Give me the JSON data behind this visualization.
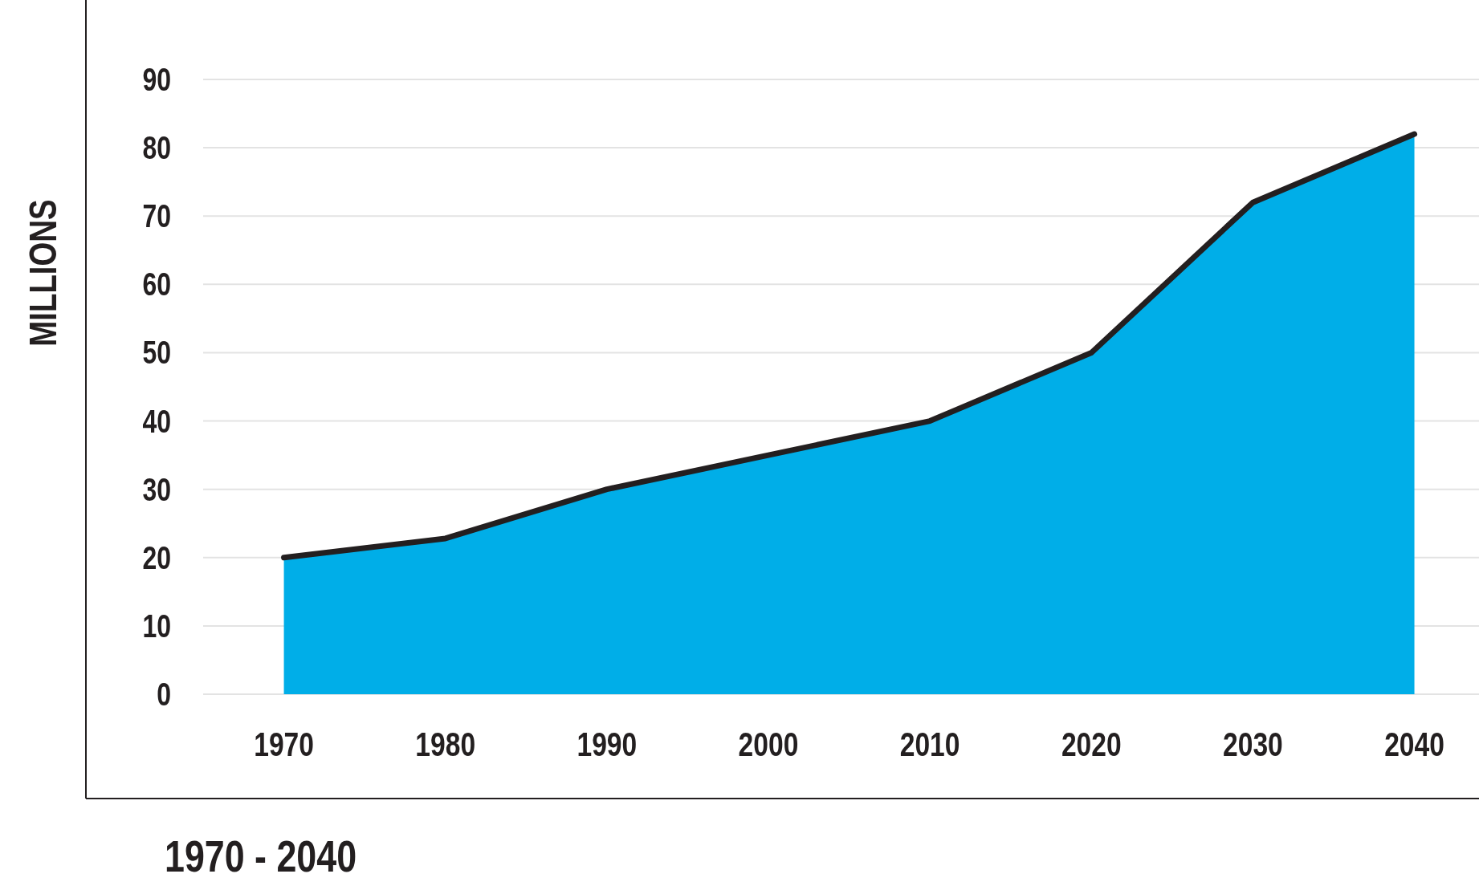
{
  "chart_data": {
    "type": "area",
    "ylabel": "MILLIONS",
    "annotations": [
      "1970 - 2040"
    ],
    "x": [
      1970,
      1980,
      1990,
      2000,
      2010,
      2020,
      2030,
      2040
    ],
    "series": [
      {
        "color": "#00aee8",
        "values": [
          20,
          22.8,
          30,
          35,
          40,
          50,
          72,
          82
        ]
      }
    ],
    "xlim": [
      1965,
      2044
    ],
    "xticks": [
      1970,
      1980,
      1990,
      2000,
      2010,
      2020,
      2030,
      2040
    ],
    "ylim": [
      0,
      90
    ],
    "yticks": [
      0,
      10,
      20,
      30,
      40,
      50,
      60,
      70,
      80,
      90
    ],
    "grid": "y",
    "marker": "none",
    "line_style": "solid"
  }
}
